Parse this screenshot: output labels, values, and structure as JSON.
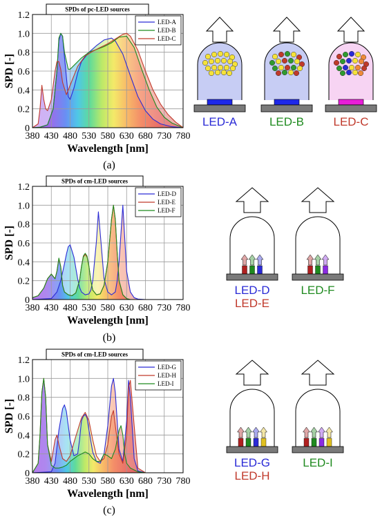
{
  "colors": {
    "blue": "#2a2ad6",
    "red": "#c0392b",
    "green": "#1f8a1f"
  },
  "panels": [
    {
      "caption": "(a)",
      "chart": {
        "type": "line",
        "title": "SPDs of pc-LED sources",
        "xlabel": "Wavelength [nm]",
        "ylabel": "SPD [-]",
        "xlim": [
          380,
          780
        ],
        "ylim": [
          0,
          1.2
        ],
        "xticks": [
          "380",
          "430",
          "480",
          "530",
          "580",
          "630",
          "680",
          "730",
          "780"
        ],
        "yticks": [
          "0",
          "0.2",
          "0.4",
          "0.6",
          "0.8",
          "1.0",
          "1.2"
        ],
        "series": [
          {
            "name": "LED-A",
            "color": "#2a2ad6",
            "x": [
              380,
              400,
              420,
              435,
              445,
              450,
              455,
              460,
              465,
              475,
              480,
              490,
              500,
              510,
              530,
              550,
              570,
              590,
              600,
              620,
              640,
              660,
              680,
              700,
              720,
              750,
              780
            ],
            "y": [
              0,
              0.005,
              0.03,
              0.2,
              0.6,
              0.92,
              1.0,
              0.97,
              0.75,
              0.33,
              0.3,
              0.42,
              0.58,
              0.7,
              0.8,
              0.87,
              0.93,
              0.95,
              0.92,
              0.78,
              0.55,
              0.33,
              0.18,
              0.09,
              0.04,
              0.01,
              0
            ]
          },
          {
            "name": "LED-B",
            "color": "#1f8a1f",
            "x": [
              380,
              400,
              420,
              435,
              445,
              450,
              455,
              460,
              465,
              475,
              480,
              490,
              510,
              530,
              550,
              570,
              590,
              610,
              630,
              650,
              670,
              690,
              710,
              730,
              750,
              780
            ],
            "y": [
              0,
              0.005,
              0.03,
              0.2,
              0.6,
              0.95,
              1.0,
              0.97,
              0.8,
              0.62,
              0.62,
              0.66,
              0.74,
              0.8,
              0.83,
              0.86,
              0.9,
              0.96,
              0.97,
              0.85,
              0.62,
              0.4,
              0.22,
              0.11,
              0.05,
              0
            ]
          },
          {
            "name": "LED-C",
            "color": "#c0392b",
            "x": [
              380,
              395,
              400,
              405,
              410,
              415,
              420,
              430,
              440,
              445,
              450,
              455,
              460,
              470,
              480,
              490,
              500,
              520,
              540,
              560,
              580,
              600,
              620,
              630,
              640,
              660,
              680,
              700,
              720,
              740,
              760,
              780
            ],
            "y": [
              0,
              0.04,
              0.2,
              0.45,
              0.3,
              0.2,
              0.18,
              0.3,
              0.6,
              0.7,
              0.7,
              0.62,
              0.48,
              0.35,
              0.45,
              0.55,
              0.65,
              0.76,
              0.81,
              0.85,
              0.89,
              0.94,
              0.99,
              1.0,
              0.97,
              0.82,
              0.6,
              0.4,
              0.25,
              0.14,
              0.06,
              0
            ]
          }
        ]
      },
      "leds": [
        {
          "label": "LED-A",
          "label_color": "#2a2ad6"
        },
        {
          "label": "LED-B",
          "label_color": "#1f8a1f"
        },
        {
          "label": "LED-C",
          "label_color": "#c0392b"
        }
      ]
    },
    {
      "caption": "(b)",
      "chart": {
        "type": "line",
        "title": "SPDs of cm-LED sources",
        "xlabel": "Wavelength [nm]",
        "ylabel": "SPD [-]",
        "xlim": [
          380,
          780
        ],
        "ylim": [
          0,
          1.2
        ],
        "xticks": [
          "380",
          "430",
          "480",
          "530",
          "580",
          "630",
          "680",
          "730",
          "780"
        ],
        "yticks": [
          "0",
          "0.2",
          "0.4",
          "0.6",
          "0.8",
          "1.0",
          "1.2"
        ],
        "series": [
          {
            "name": "LED-D",
            "color": "#2a2ad6",
            "x": [
              380,
              430,
              445,
              455,
              465,
              470,
              475,
              480,
              490,
              500,
              505,
              510,
              520,
              530,
              535,
              540,
              550,
              555,
              560,
              570,
              580,
              590,
              600,
              605,
              610,
              620,
              630,
              640,
              650,
              660,
              680,
              700
            ],
            "y": [
              0,
              0.01,
              0.08,
              0.2,
              0.38,
              0.48,
              0.56,
              0.58,
              0.45,
              0.22,
              0.13,
              0.08,
              0.05,
              0.06,
              0.1,
              0.2,
              0.62,
              0.93,
              0.7,
              0.22,
              0.08,
              0.05,
              0.08,
              0.2,
              0.4,
              1.0,
              0.3,
              0.08,
              0.02,
              0.005,
              0,
              0
            ]
          },
          {
            "name": "LED-E",
            "color": "#c0392b",
            "x": [
              380,
              395,
              410,
              420,
              430,
              440,
              445,
              450,
              455,
              460,
              465,
              475,
              485,
              495,
              505,
              510,
              515,
              520,
              525,
              530,
              535,
              540,
              550,
              560,
              570,
              580,
              590,
              595,
              600,
              605,
              610,
              620,
              630,
              640,
              660,
              700
            ],
            "y": [
              0.02,
              0.04,
              0.12,
              0.22,
              0.27,
              0.22,
              0.3,
              0.43,
              0.35,
              0.15,
              0.08,
              0.05,
              0.04,
              0.07,
              0.2,
              0.35,
              0.45,
              0.48,
              0.45,
              0.35,
              0.2,
              0.1,
              0.05,
              0.06,
              0.15,
              0.4,
              0.85,
              1.0,
              0.85,
              0.5,
              0.2,
              0.05,
              0.01,
              0,
              0,
              0
            ]
          },
          {
            "name": "LED-F",
            "color": "#1f8a1f",
            "x": [
              380,
              395,
              410,
              420,
              430,
              440,
              445,
              450,
              455,
              460,
              465,
              475,
              485,
              495,
              505,
              510,
              515,
              520,
              525,
              530,
              535,
              540,
              550,
              560,
              570,
              580,
              590,
              595,
              600,
              605,
              610,
              620,
              630,
              640,
              660,
              700
            ],
            "y": [
              0.02,
              0.04,
              0.12,
              0.22,
              0.27,
              0.22,
              0.3,
              0.44,
              0.35,
              0.15,
              0.08,
              0.05,
              0.04,
              0.07,
              0.2,
              0.35,
              0.46,
              0.49,
              0.46,
              0.35,
              0.2,
              0.1,
              0.05,
              0.06,
              0.15,
              0.4,
              0.85,
              1.0,
              0.85,
              0.5,
              0.2,
              0.05,
              0.01,
              0,
              0,
              0
            ]
          }
        ]
      },
      "leds": [
        {
          "label": "LED-D",
          "label_color": "#2a2ad6",
          "label2": "LED-E",
          "label2_color": "#c0392b"
        },
        {
          "label": "LED-F",
          "label_color": "#1f8a1f"
        }
      ]
    },
    {
      "caption": "(c)",
      "chart": {
        "type": "line",
        "title": "SPDs of cm-LED sources",
        "xlabel": "Wavelength [nm]",
        "ylabel": "SPD [-]",
        "xlim": [
          380,
          780
        ],
        "ylim": [
          0,
          1.2
        ],
        "xticks": [
          "380",
          "430",
          "480",
          "530",
          "580",
          "630",
          "680",
          "730",
          "780"
        ],
        "yticks": [
          "0",
          "0.2",
          "0.4",
          "0.6",
          "0.8",
          "1.0",
          "1.2"
        ],
        "series": [
          {
            "name": "LED-G",
            "color": "#2a2ad6",
            "x": [
              380,
              430,
              440,
              450,
              460,
              465,
              470,
              480,
              490,
              500,
              505,
              510,
              515,
              520,
              525,
              530,
              540,
              550,
              560,
              570,
              580,
              590,
              595,
              600,
              610,
              620,
              630,
              635,
              640,
              650,
              660,
              680
            ],
            "y": [
              0,
              0.01,
              0.1,
              0.45,
              0.68,
              0.72,
              0.65,
              0.35,
              0.18,
              0.2,
              0.35,
              0.55,
              0.6,
              0.62,
              0.58,
              0.45,
              0.22,
              0.12,
              0.1,
              0.2,
              0.5,
              0.92,
              1.0,
              0.85,
              0.25,
              0.12,
              0.55,
              0.98,
              0.8,
              0.15,
              0.02,
              0
            ]
          },
          {
            "name": "LED-H",
            "color": "#c0392b",
            "x": [
              380,
              395,
              400,
              405,
              410,
              415,
              420,
              430,
              440,
              445,
              450,
              460,
              470,
              480,
              490,
              500,
              510,
              520,
              530,
              540,
              550,
              560,
              570,
              580,
              590,
              595,
              600,
              610,
              620,
              630,
              635,
              640,
              650,
              660,
              680
            ],
            "y": [
              0,
              0.1,
              0.4,
              0.85,
              1.0,
              0.8,
              0.3,
              0.12,
              0.35,
              0.4,
              0.3,
              0.15,
              0.12,
              0.18,
              0.32,
              0.45,
              0.58,
              0.64,
              0.55,
              0.35,
              0.18,
              0.12,
              0.15,
              0.3,
              0.6,
              0.66,
              0.5,
              0.2,
              0.1,
              0.4,
              0.9,
              0.98,
              0.5,
              0.05,
              0
            ]
          },
          {
            "name": "LED-I",
            "color": "#1f8a1f",
            "x": [
              380,
              395,
              400,
              405,
              410,
              415,
              420,
              430,
              440,
              450,
              460,
              470,
              480,
              490,
              500,
              510,
              520,
              530,
              540,
              550,
              560,
              570,
              580,
              590,
              600,
              610,
              615,
              620,
              625,
              630,
              640,
              660,
              680
            ],
            "y": [
              0,
              0.1,
              0.4,
              0.85,
              1.0,
              0.8,
              0.3,
              0.08,
              0.05,
              0.05,
              0.06,
              0.08,
              0.12,
              0.15,
              0.18,
              0.2,
              0.22,
              0.2,
              0.15,
              0.12,
              0.12,
              0.2,
              0.18,
              0.15,
              0.25,
              0.45,
              0.5,
              0.4,
              0.2,
              0.1,
              0.05,
              0.01,
              0
            ]
          }
        ]
      },
      "leds": [
        {
          "label": "LED-G",
          "label_color": "#2a2ad6",
          "label2": "LED-H",
          "label2_color": "#c0392b"
        },
        {
          "label": "LED-I",
          "label_color": "#1f8a1f"
        }
      ]
    }
  ]
}
